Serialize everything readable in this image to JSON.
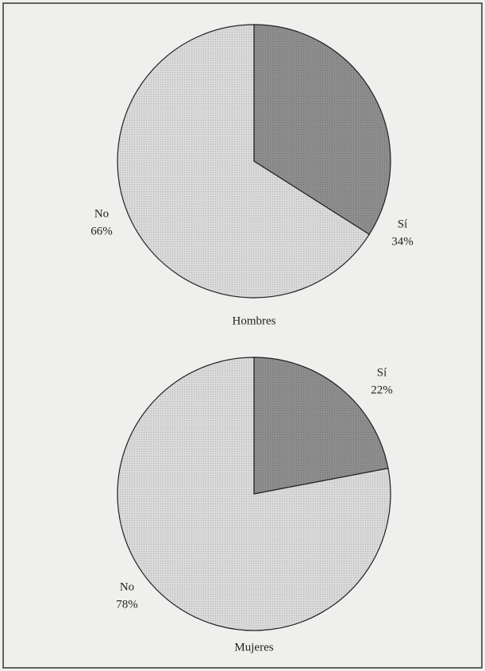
{
  "chart_data": [
    {
      "type": "pie",
      "title": "Hombres",
      "categories": [
        "Sí",
        "No"
      ],
      "values": [
        34,
        66
      ],
      "value_labels": [
        "34%",
        "66%"
      ],
      "colors": [
        "#8e8e8e",
        "#dadada"
      ]
    },
    {
      "type": "pie",
      "title": "Mujeres",
      "categories": [
        "Sí",
        "No"
      ],
      "values": [
        22,
        78
      ],
      "value_labels": [
        "22%",
        "78%"
      ],
      "colors": [
        "#8e8e8e",
        "#dadada"
      ]
    }
  ]
}
